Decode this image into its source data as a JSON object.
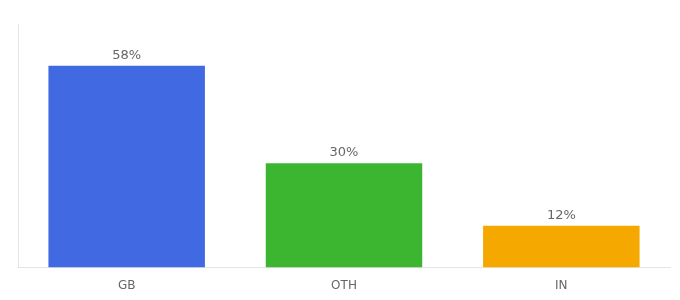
{
  "chart_data": {
    "type": "bar",
    "categories": [
      "GB",
      "OTH",
      "IN"
    ],
    "values": [
      58,
      30,
      12
    ],
    "value_labels": [
      "58%",
      "30%",
      "12%"
    ],
    "colors": [
      "#4169e1",
      "#3cb531",
      "#f5a800"
    ],
    "ylim": [
      0,
      70
    ],
    "grid": false,
    "data_labels": true,
    "tick_labels": "x"
  }
}
